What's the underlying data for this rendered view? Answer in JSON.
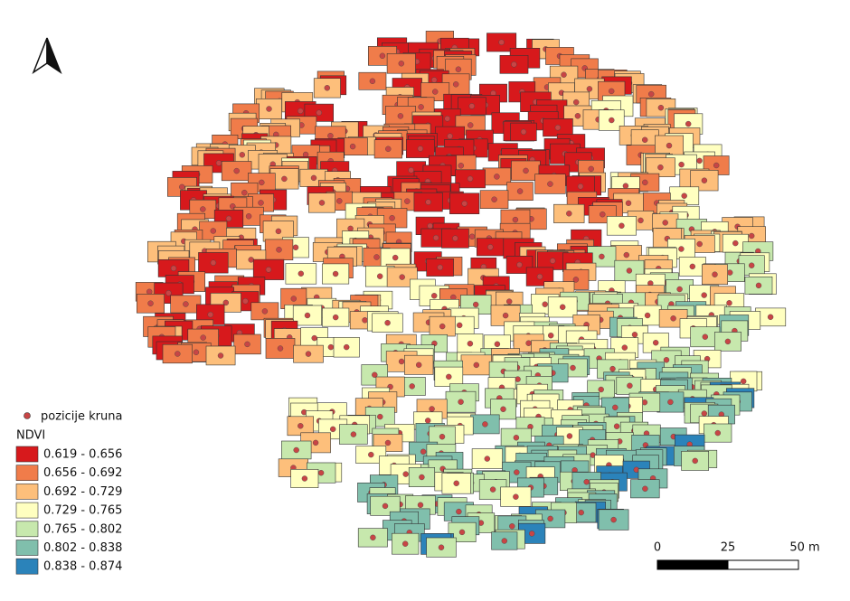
{
  "legend": {
    "points_label": "pozicije kruna",
    "points_color": "#c84545",
    "title": "NDVI",
    "classes": [
      {
        "label": "0.619 - 0.656",
        "color": "#d7191c"
      },
      {
        "label": "0.656 - 0.692",
        "color": "#f07c4a"
      },
      {
        "label": "0.692 - 0.729",
        "color": "#fdbf7b"
      },
      {
        "label": "0.729 - 0.765",
        "color": "#ffffc0"
      },
      {
        "label": "0.765 - 0.802",
        "color": "#c7e8ad"
      },
      {
        "label": "0.802 - 0.838",
        "color": "#80bfac"
      },
      {
        "label": "0.838 - 0.874",
        "color": "#2b83ba"
      }
    ]
  },
  "scale_bar": {
    "ticks": [
      "0",
      "25",
      "50 m"
    ]
  }
}
